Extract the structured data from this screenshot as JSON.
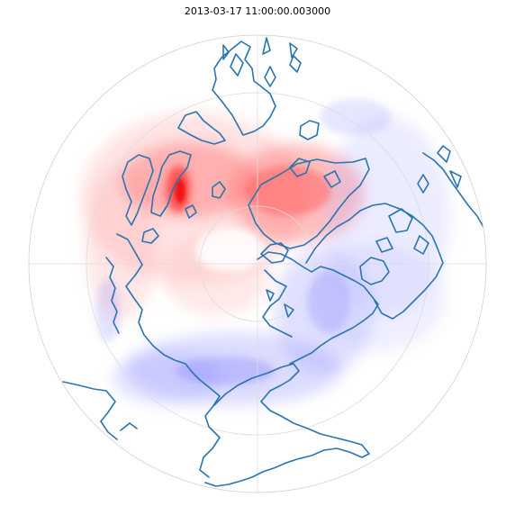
{
  "title": "2013-03-17 11:00:00.003000",
  "colors": {
    "coastline": "#2a74b0",
    "grid": "#d8d8d8",
    "positive": "#ff3b3b",
    "negative": "#4848ff"
  },
  "map": {
    "projection": "north-polar-stereographic",
    "field": "diverging anomaly (red positive, blue negative)",
    "gridlines": true
  }
}
